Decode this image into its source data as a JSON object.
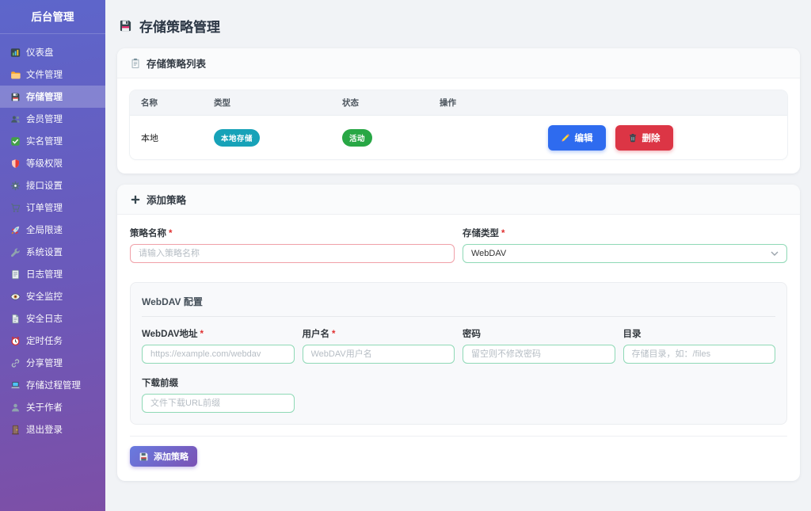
{
  "sidebar": {
    "title": "后台管理",
    "items": [
      {
        "label": "仪表盘",
        "icon": "dashboard-icon",
        "active": false
      },
      {
        "label": "文件管理",
        "icon": "folder-icon",
        "active": false
      },
      {
        "label": "存储管理",
        "icon": "floppy-icon",
        "active": true
      },
      {
        "label": "会员管理",
        "icon": "users-icon",
        "active": false
      },
      {
        "label": "实名管理",
        "icon": "check-badge-icon",
        "active": false
      },
      {
        "label": "等级权限",
        "icon": "shield-icon",
        "active": false
      },
      {
        "label": "接口设置",
        "icon": "gear-icon",
        "active": false
      },
      {
        "label": "订单管理",
        "icon": "cart-icon",
        "active": false
      },
      {
        "label": "全局限速",
        "icon": "rocket-icon",
        "active": false
      },
      {
        "label": "系统设置",
        "icon": "wrench-icon",
        "active": false
      },
      {
        "label": "日志管理",
        "icon": "log-icon",
        "active": false
      },
      {
        "label": "安全监控",
        "icon": "eye-icon",
        "active": false
      },
      {
        "label": "安全日志",
        "icon": "document-icon",
        "active": false
      },
      {
        "label": "定时任务",
        "icon": "alarm-clock-icon",
        "active": false
      },
      {
        "label": "分享管理",
        "icon": "link-icon",
        "active": false
      },
      {
        "label": "存储过程管理",
        "icon": "laptop-icon",
        "active": false
      },
      {
        "label": "关于作者",
        "icon": "user-icon",
        "active": false
      },
      {
        "label": "退出登录",
        "icon": "door-icon",
        "active": false
      }
    ]
  },
  "header": {
    "title": "存储策略管理",
    "icon": "floppy-icon"
  },
  "list_card": {
    "title": "存储策略列表",
    "icon": "clipboard-icon",
    "table": {
      "headers": [
        "名称",
        "类型",
        "状态",
        "操作"
      ],
      "rows": [
        {
          "name": "本地",
          "type_badge": "本地存储",
          "status_badge": "活动",
          "edit_label": "编辑",
          "delete_label": "删除"
        }
      ]
    }
  },
  "add_card": {
    "title": "添加策略",
    "icon": "plus-icon",
    "required_marker": "*",
    "fields": {
      "policy_name": {
        "label": "策略名称",
        "required": true,
        "placeholder": "请输入策略名称",
        "value": ""
      },
      "storage_type": {
        "label": "存储类型",
        "required": true,
        "value": "WebDAV"
      }
    },
    "webdav": {
      "title": "WebDAV 配置",
      "fields": {
        "address": {
          "label": "WebDAV地址",
          "required": true,
          "placeholder": "https://example.com/webdav",
          "value": ""
        },
        "username": {
          "label": "用户名",
          "required": true,
          "placeholder": "WebDAV用户名",
          "value": ""
        },
        "password": {
          "label": "密码",
          "required": false,
          "placeholder": "留空则不修改密码",
          "value": ""
        },
        "directory": {
          "label": "目录",
          "required": false,
          "placeholder": "存储目录，如：/files",
          "value": ""
        },
        "prefix": {
          "label": "下载前缀",
          "required": false,
          "placeholder": "文件下载URL前缀",
          "value": ""
        }
      }
    },
    "submit_label": "添加策略"
  },
  "colors": {
    "sidebar_gradient_top": "#5d66cb",
    "sidebar_gradient_bottom": "#7d4fa6",
    "type_badge": "#17a2b8",
    "status_badge": "#28a745",
    "edit_button": "#2e6bef",
    "delete_button": "#dc3545",
    "submit_button_gradient": "#687be0 → #7b52b4",
    "valid_input_border": "#8fd9b6",
    "invalid_input_border": "#f0a0a8",
    "page_background": "#f1f3f6"
  }
}
